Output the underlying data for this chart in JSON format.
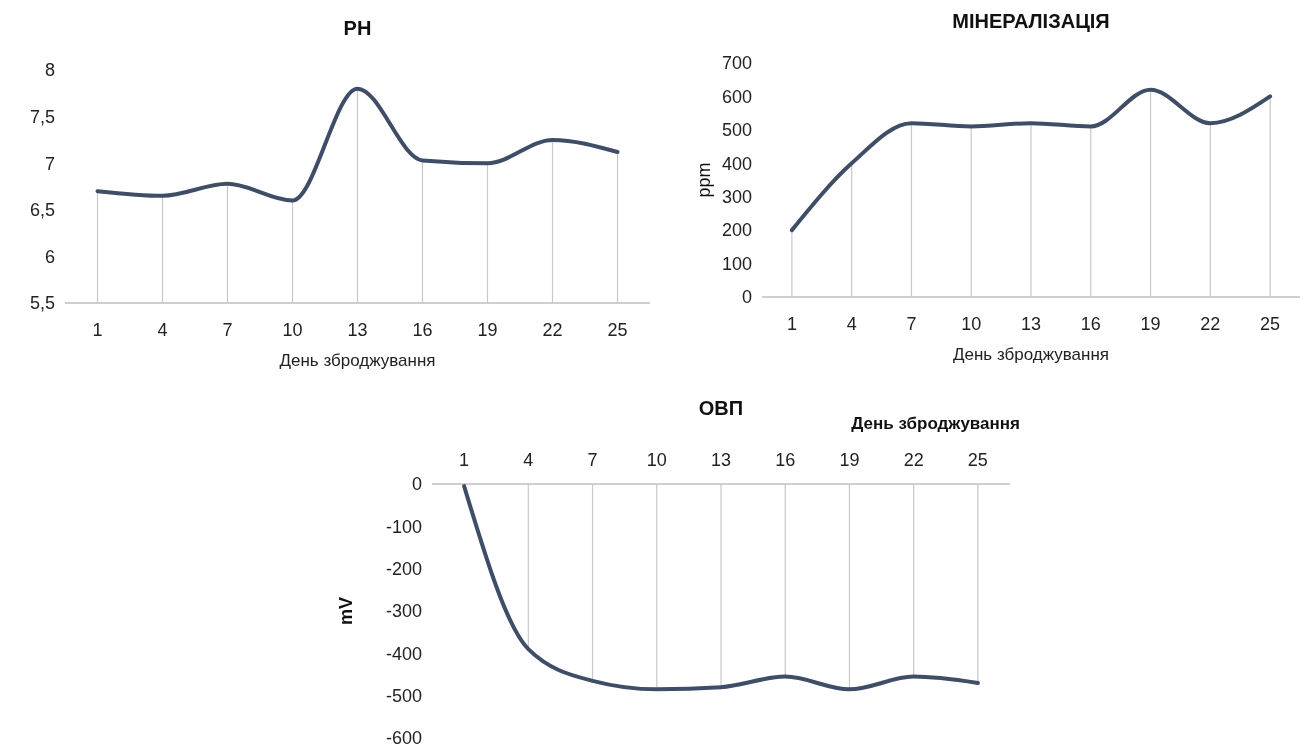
{
  "chart_data": [
    {
      "type": "line",
      "title": "PH",
      "xlabel": "День зброджування",
      "categories": [
        "1",
        "4",
        "7",
        "10",
        "13",
        "16",
        "19",
        "22",
        "25"
      ],
      "series": [
        {
          "type": "bar",
          "color": "#c8c8c8",
          "values": [
            6.7,
            6.65,
            6.78,
            6.6,
            7.8,
            7.03,
            7.0,
            7.25,
            7.12
          ]
        },
        {
          "color": "#3f4e66",
          "values": [
            6.7,
            6.65,
            6.78,
            6.6,
            7.8,
            7.03,
            7.0,
            7.25,
            7.12
          ]
        }
      ],
      "ylim": [
        5.5,
        8
      ],
      "yticks": [
        {
          "value": 5.5,
          "label": "5,5"
        },
        6,
        {
          "value": 6.5,
          "label": "6,5"
        },
        7,
        {
          "value": 7.5,
          "label": "7,5"
        },
        8
      ],
      "marker": "none",
      "line_style": "solid"
    },
    {
      "type": "line",
      "title": "МІНЕРАЛІЗАЦІЯ",
      "xlabel": "День зброджування",
      "ylabel": "ppm",
      "categories": [
        "1",
        "4",
        "7",
        "10",
        "13",
        "16",
        "19",
        "22",
        "25"
      ],
      "series": [
        {
          "type": "bar",
          "color": "#c8c8c8",
          "values": [
            200,
            400,
            520,
            510,
            520,
            510,
            620,
            520,
            600
          ]
        },
        {
          "color": "#3f4e66",
          "values": [
            200,
            400,
            520,
            510,
            520,
            510,
            620,
            520,
            600
          ]
        }
      ],
      "ylim": [
        0,
        700
      ],
      "yticks": [
        0,
        100,
        200,
        300,
        400,
        500,
        600,
        700
      ],
      "marker": "none",
      "line_style": "solid"
    },
    {
      "type": "line",
      "title": "ОВП",
      "xlabel": "День зброджування",
      "ylabel": "mV",
      "categories": [
        "1",
        "4",
        "7",
        "10",
        "13",
        "16",
        "19",
        "22",
        "25"
      ],
      "series": [
        {
          "type": "bar",
          "color": "#c8c8c8",
          "values": [
            null,
            -390,
            -465,
            -485,
            -480,
            -455,
            -485,
            -455,
            -470
          ]
        },
        {
          "color": "#3f4e66",
          "values": [
            -5,
            -390,
            -465,
            -485,
            -480,
            -455,
            -485,
            -455,
            -470
          ]
        }
      ],
      "ylim": [
        -600,
        0
      ],
      "yticks": [
        -600,
        -500,
        -400,
        -300,
        -200,
        -100,
        0
      ],
      "marker": "none",
      "line_style": "solid"
    }
  ]
}
